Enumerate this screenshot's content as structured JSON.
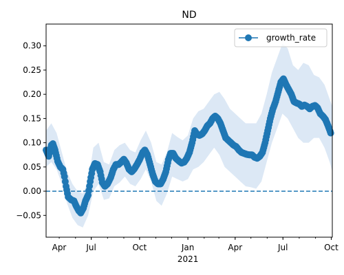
{
  "chart_data": {
    "type": "line",
    "title": "ND",
    "xlabel": "",
    "ylabel": "",
    "ylim": [
      -0.095,
      0.345
    ],
    "xlim_days": [
      -270,
      275
    ],
    "x_ticks": [
      {
        "label": "Apr",
        "day": -275
      },
      {
        "label": "Jul",
        "day": -184
      },
      {
        "label": "Oct",
        "day": -92
      },
      {
        "label": "Jan",
        "day": 0
      },
      {
        "label": "Apr",
        "day": 90
      },
      {
        "label": "Jul",
        "day": 181
      },
      {
        "label": "Oct",
        "day": 273
      }
    ],
    "x_year_label": "2021",
    "y_ticks": [
      -0.05,
      0.0,
      0.05,
      0.1,
      0.15,
      0.2,
      0.25,
      0.3
    ],
    "y_tick_labels": [
      "−0.05",
      "0.00",
      "0.05",
      "0.10",
      "0.15",
      "0.20",
      "0.25",
      "0.30"
    ],
    "legend": {
      "position": "top-right",
      "entries": [
        "growth_rate"
      ]
    },
    "reference_line": {
      "y": 0.0,
      "style": "dashed"
    },
    "colors": {
      "line": "#1f77b4",
      "band": "#dce8f5",
      "zero_line": "#1f77b4"
    },
    "series": [
      {
        "name": "growth_rate",
        "points": [
          [
            -270,
            0.085
          ],
          [
            -265,
            0.072
          ],
          [
            -260,
            0.095
          ],
          [
            -257,
            0.098
          ],
          [
            -253,
            0.085
          ],
          [
            -248,
            0.062
          ],
          [
            -243,
            0.05
          ],
          [
            -238,
            0.045
          ],
          [
            -235,
            0.03
          ],
          [
            -232,
            0.01
          ],
          [
            -228,
            -0.012
          ],
          [
            -222,
            -0.018
          ],
          [
            -217,
            -0.02
          ],
          [
            -213,
            -0.03
          ],
          [
            -208,
            -0.04
          ],
          [
            -204,
            -0.045
          ],
          [
            -199,
            -0.035
          ],
          [
            -195,
            -0.02
          ],
          [
            -190,
            -0.008
          ],
          [
            -186,
            0.02
          ],
          [
            -182,
            0.045
          ],
          [
            -177,
            0.057
          ],
          [
            -172,
            0.055
          ],
          [
            -167,
            0.04
          ],
          [
            -163,
            0.018
          ],
          [
            -158,
            0.01
          ],
          [
            -153,
            0.015
          ],
          [
            -147,
            0.028
          ],
          [
            -142,
            0.045
          ],
          [
            -137,
            0.055
          ],
          [
            -132,
            0.055
          ],
          [
            -127,
            0.06
          ],
          [
            -122,
            0.066
          ],
          [
            -117,
            0.058
          ],
          [
            -112,
            0.045
          ],
          [
            -107,
            0.04
          ],
          [
            -102,
            0.046
          ],
          [
            -97,
            0.055
          ],
          [
            -92,
            0.065
          ],
          [
            -86,
            0.08
          ],
          [
            -82,
            0.085
          ],
          [
            -77,
            0.075
          ],
          [
            -72,
            0.055
          ],
          [
            -67,
            0.035
          ],
          [
            -62,
            0.02
          ],
          [
            -57,
            0.015
          ],
          [
            -52,
            0.015
          ],
          [
            -47,
            0.025
          ],
          [
            -42,
            0.04
          ],
          [
            -37,
            0.065
          ],
          [
            -33,
            0.078
          ],
          [
            -28,
            0.078
          ],
          [
            -23,
            0.068
          ],
          [
            -17,
            0.062
          ],
          [
            -12,
            0.058
          ],
          [
            -7,
            0.06
          ],
          [
            -2,
            0.068
          ],
          [
            3,
            0.08
          ],
          [
            8,
            0.1
          ],
          [
            13,
            0.125
          ],
          [
            17,
            0.118
          ],
          [
            22,
            0.115
          ],
          [
            27,
            0.118
          ],
          [
            32,
            0.125
          ],
          [
            37,
            0.135
          ],
          [
            42,
            0.14
          ],
          [
            47,
            0.15
          ],
          [
            52,
            0.155
          ],
          [
            57,
            0.15
          ],
          [
            62,
            0.14
          ],
          [
            67,
            0.125
          ],
          [
            72,
            0.11
          ],
          [
            77,
            0.105
          ],
          [
            82,
            0.1
          ],
          [
            87,
            0.095
          ],
          [
            92,
            0.092
          ],
          [
            97,
            0.085
          ],
          [
            102,
            0.08
          ],
          [
            107,
            0.078
          ],
          [
            112,
            0.076
          ],
          [
            117,
            0.075
          ],
          [
            122,
            0.075
          ],
          [
            127,
            0.07
          ],
          [
            132,
            0.068
          ],
          [
            137,
            0.072
          ],
          [
            142,
            0.08
          ],
          [
            147,
            0.1
          ],
          [
            152,
            0.125
          ],
          [
            157,
            0.15
          ],
          [
            162,
            0.17
          ],
          [
            167,
            0.185
          ],
          [
            172,
            0.205
          ],
          [
            177,
            0.225
          ],
          [
            182,
            0.232
          ],
          [
            187,
            0.22
          ],
          [
            192,
            0.21
          ],
          [
            197,
            0.2
          ],
          [
            202,
            0.185
          ],
          [
            207,
            0.182
          ],
          [
            212,
            0.18
          ],
          [
            217,
            0.175
          ],
          [
            222,
            0.178
          ],
          [
            227,
            0.175
          ],
          [
            232,
            0.17
          ],
          [
            237,
            0.175
          ],
          [
            242,
            0.177
          ],
          [
            247,
            0.172
          ],
          [
            252,
            0.16
          ],
          [
            257,
            0.155
          ],
          [
            262,
            0.148
          ],
          [
            267,
            0.135
          ],
          [
            272,
            0.12
          ]
        ],
        "band_lower": [
          [
            -270,
            0.05
          ],
          [
            -260,
            0.06
          ],
          [
            -250,
            0.045
          ],
          [
            -240,
            0.015
          ],
          [
            -230,
            -0.025
          ],
          [
            -220,
            -0.055
          ],
          [
            -210,
            -0.07
          ],
          [
            -200,
            -0.075
          ],
          [
            -190,
            -0.05
          ],
          [
            -180,
            0.0
          ],
          [
            -170,
            0.015
          ],
          [
            -160,
            -0.018
          ],
          [
            -150,
            -0.015
          ],
          [
            -140,
            0.01
          ],
          [
            -130,
            0.018
          ],
          [
            -120,
            0.03
          ],
          [
            -110,
            0.015
          ],
          [
            -100,
            0.01
          ],
          [
            -90,
            0.025
          ],
          [
            -80,
            0.045
          ],
          [
            -70,
            0.02
          ],
          [
            -60,
            -0.02
          ],
          [
            -50,
            -0.03
          ],
          [
            -40,
            -0.005
          ],
          [
            -30,
            0.03
          ],
          [
            -20,
            0.025
          ],
          [
            -10,
            0.02
          ],
          [
            0,
            0.025
          ],
          [
            10,
            0.045
          ],
          [
            20,
            0.05
          ],
          [
            30,
            0.06
          ],
          [
            40,
            0.075
          ],
          [
            50,
            0.09
          ],
          [
            60,
            0.075
          ],
          [
            70,
            0.05
          ],
          [
            80,
            0.04
          ],
          [
            90,
            0.03
          ],
          [
            100,
            0.02
          ],
          [
            110,
            0.01
          ],
          [
            120,
            0.008
          ],
          [
            130,
            0.005
          ],
          [
            140,
            0.02
          ],
          [
            150,
            0.06
          ],
          [
            160,
            0.1
          ],
          [
            170,
            0.13
          ],
          [
            180,
            0.16
          ],
          [
            190,
            0.15
          ],
          [
            200,
            0.13
          ],
          [
            210,
            0.11
          ],
          [
            220,
            0.1
          ],
          [
            230,
            0.1
          ],
          [
            240,
            0.11
          ],
          [
            250,
            0.11
          ],
          [
            260,
            0.09
          ],
          [
            270,
            0.06
          ],
          [
            275,
            0.04
          ]
        ],
        "band_upper": [
          [
            -270,
            0.125
          ],
          [
            -260,
            0.14
          ],
          [
            -250,
            0.12
          ],
          [
            -240,
            0.08
          ],
          [
            -230,
            0.04
          ],
          [
            -220,
            0.015
          ],
          [
            -210,
            0.0
          ],
          [
            -200,
            -0.005
          ],
          [
            -190,
            0.02
          ],
          [
            -180,
            0.09
          ],
          [
            -170,
            0.1
          ],
          [
            -160,
            0.06
          ],
          [
            -150,
            0.055
          ],
          [
            -140,
            0.085
          ],
          [
            -130,
            0.095
          ],
          [
            -120,
            0.1
          ],
          [
            -110,
            0.085
          ],
          [
            -100,
            0.08
          ],
          [
            -90,
            0.105
          ],
          [
            -80,
            0.125
          ],
          [
            -70,
            0.1
          ],
          [
            -60,
            0.06
          ],
          [
            -50,
            0.055
          ],
          [
            -40,
            0.08
          ],
          [
            -30,
            0.12
          ],
          [
            -20,
            0.112
          ],
          [
            -10,
            0.105
          ],
          [
            0,
            0.115
          ],
          [
            10,
            0.15
          ],
          [
            20,
            0.165
          ],
          [
            30,
            0.17
          ],
          [
            40,
            0.185
          ],
          [
            50,
            0.2
          ],
          [
            60,
            0.205
          ],
          [
            70,
            0.19
          ],
          [
            80,
            0.17
          ],
          [
            90,
            0.16
          ],
          [
            100,
            0.15
          ],
          [
            110,
            0.14
          ],
          [
            120,
            0.14
          ],
          [
            130,
            0.14
          ],
          [
            140,
            0.16
          ],
          [
            150,
            0.2
          ],
          [
            160,
            0.245
          ],
          [
            170,
            0.275
          ],
          [
            180,
            0.305
          ],
          [
            190,
            0.295
          ],
          [
            200,
            0.26
          ],
          [
            210,
            0.25
          ],
          [
            220,
            0.265
          ],
          [
            230,
            0.26
          ],
          [
            240,
            0.24
          ],
          [
            250,
            0.235
          ],
          [
            260,
            0.22
          ],
          [
            270,
            0.19
          ],
          [
            275,
            0.175
          ]
        ]
      }
    ]
  }
}
